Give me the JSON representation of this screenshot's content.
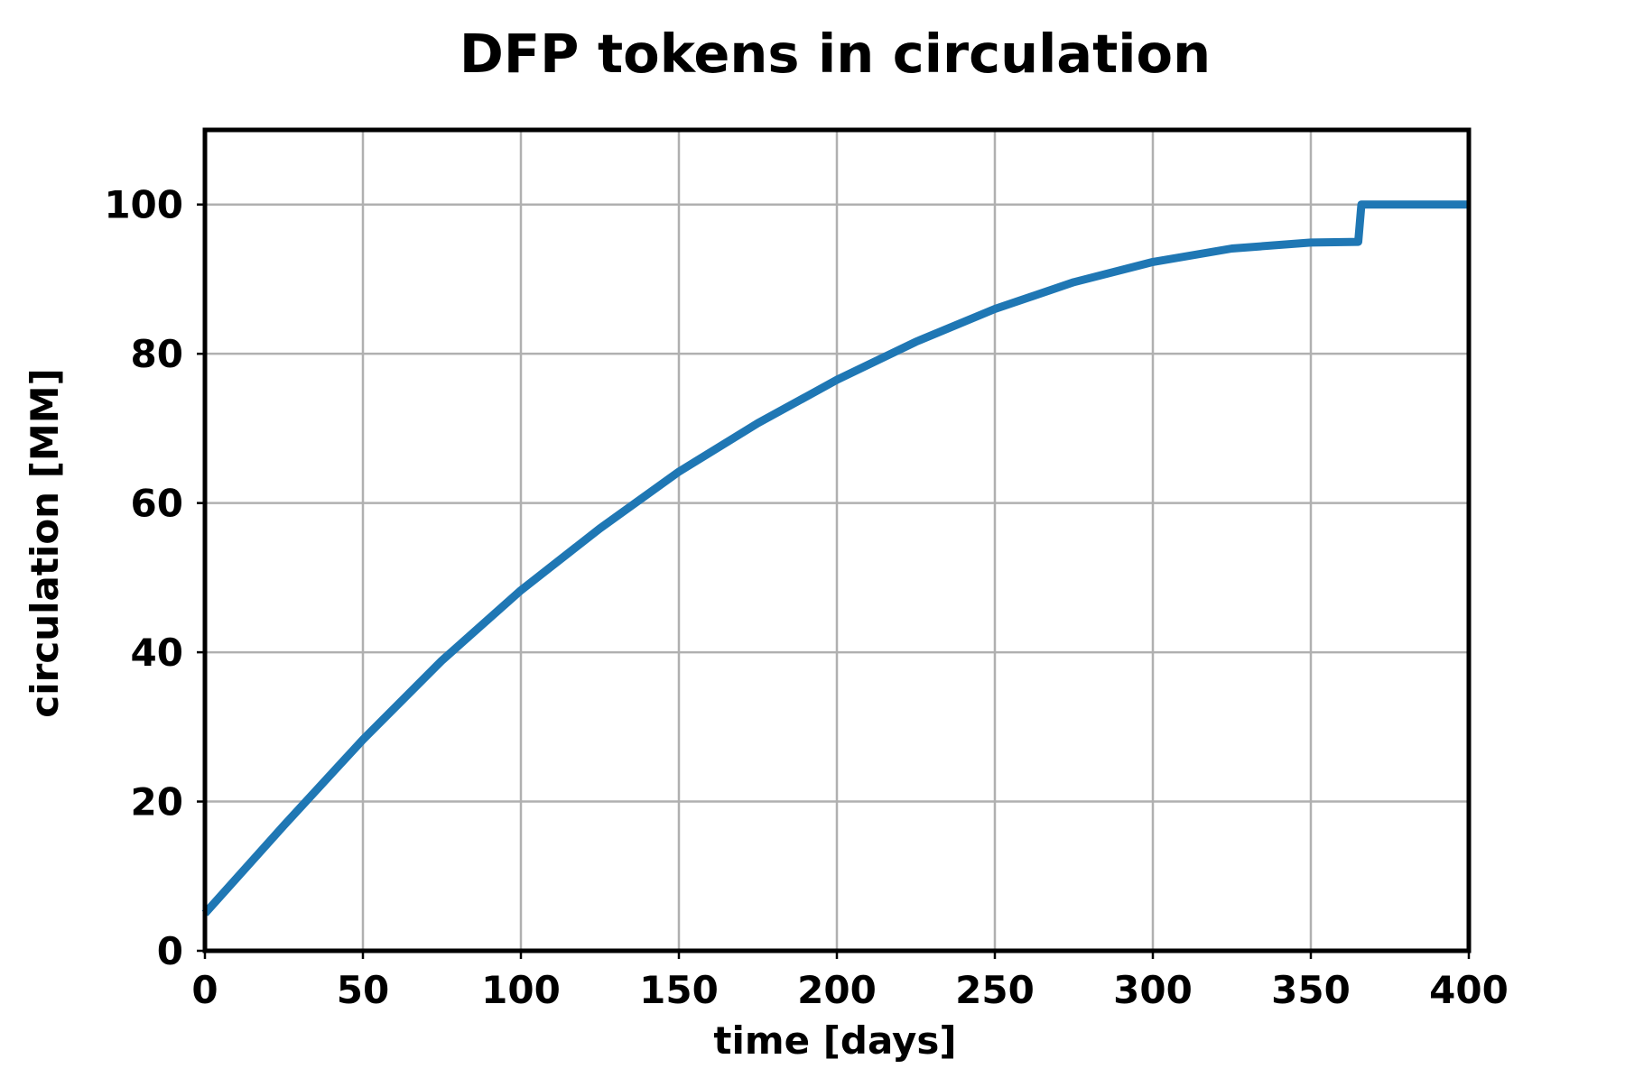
{
  "chart_data": {
    "type": "line",
    "title": "DFP tokens in circulation",
    "xlabel": "time [days]",
    "ylabel": "circulation [MM]",
    "xlim": [
      0,
      400
    ],
    "ylim": [
      0,
      110
    ],
    "xticks": [
      0,
      50,
      100,
      150,
      200,
      250,
      300,
      350,
      400
    ],
    "yticks": [
      0,
      20,
      40,
      60,
      80,
      100
    ],
    "grid": true,
    "legend": "none",
    "series": [
      {
        "color": "#1f77b4",
        "x": [
          0,
          25,
          50,
          75,
          100,
          125,
          150,
          175,
          200,
          225,
          250,
          275,
          300,
          325,
          350,
          365,
          366,
          400
        ],
        "y": [
          5,
          16.8,
          28.3,
          38.9,
          48.3,
          56.6,
          64.2,
          70.7,
          76.5,
          81.6,
          86,
          89.6,
          92.3,
          94.1,
          94.9,
          95,
          100,
          100
        ]
      }
    ]
  }
}
